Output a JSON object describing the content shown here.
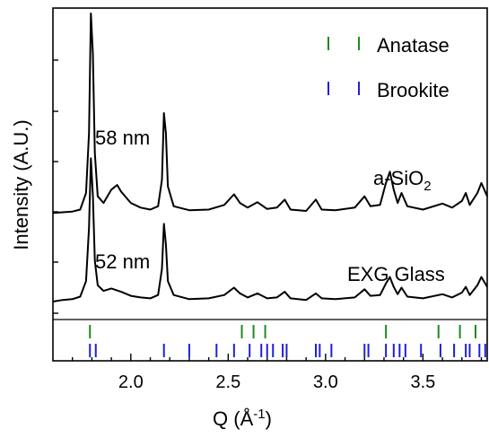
{
  "chart_data": {
    "type": "line",
    "xlabel": "Q (Å",
    "xlabel_sup": "-1",
    "xlabel_close": ")",
    "ylabel": "Intensity (A.U.)",
    "xlim": [
      1.6,
      3.83
    ],
    "x_ticks": [
      2.0,
      2.5,
      3.0,
      3.5
    ],
    "x_tick_labels": [
      "2.0",
      "2.5",
      "3.0",
      "3.5"
    ],
    "y_ticks_note": "unlabeled",
    "grid": false,
    "legend": {
      "placement": "top-right",
      "entries": [
        {
          "label": "Anatase",
          "color": "#1f8a1f"
        },
        {
          "label": "Brookite",
          "color": "#1f1fdd"
        }
      ]
    },
    "annotations": {
      "top_size": "58 nm",
      "bottom_size": "52 nm",
      "top_sample": "a-SiO",
      "top_sample_sub": "2",
      "bottom_sample": "EXG Glass"
    },
    "series": [
      {
        "color": "#000000",
        "baseline": 0.9,
        "scale": 0.75,
        "points": [
          [
            1.6,
            0.0
          ],
          [
            1.65,
            0.01
          ],
          [
            1.7,
            0.02
          ],
          [
            1.74,
            0.05
          ],
          [
            1.77,
            0.3
          ],
          [
            1.785,
            1.2
          ],
          [
            1.795,
            3.0
          ],
          [
            1.805,
            2.4
          ],
          [
            1.815,
            0.9
          ],
          [
            1.83,
            0.25
          ],
          [
            1.86,
            0.15
          ],
          [
            1.9,
            0.35
          ],
          [
            1.93,
            0.42
          ],
          [
            1.95,
            0.32
          ],
          [
            2.0,
            0.15
          ],
          [
            2.05,
            0.08
          ],
          [
            2.1,
            0.05
          ],
          [
            2.14,
            0.1
          ],
          [
            2.16,
            0.5
          ],
          [
            2.17,
            1.5
          ],
          [
            2.18,
            1.2
          ],
          [
            2.19,
            0.4
          ],
          [
            2.22,
            0.1
          ],
          [
            2.3,
            0.04
          ],
          [
            2.4,
            0.05
          ],
          [
            2.48,
            0.12
          ],
          [
            2.53,
            0.28
          ],
          [
            2.56,
            0.15
          ],
          [
            2.6,
            0.08
          ],
          [
            2.65,
            0.16
          ],
          [
            2.7,
            0.06
          ],
          [
            2.75,
            0.08
          ],
          [
            2.79,
            0.2
          ],
          [
            2.82,
            0.05
          ],
          [
            2.9,
            0.03
          ],
          [
            2.95,
            0.2
          ],
          [
            2.98,
            0.05
          ],
          [
            3.05,
            0.04
          ],
          [
            3.15,
            0.08
          ],
          [
            3.2,
            0.25
          ],
          [
            3.23,
            0.1
          ],
          [
            3.28,
            0.12
          ],
          [
            3.31,
            0.45
          ],
          [
            3.33,
            0.62
          ],
          [
            3.35,
            0.35
          ],
          [
            3.37,
            0.15
          ],
          [
            3.39,
            0.3
          ],
          [
            3.42,
            0.1
          ],
          [
            3.5,
            0.05
          ],
          [
            3.6,
            0.14
          ],
          [
            3.65,
            0.08
          ],
          [
            3.7,
            0.18
          ],
          [
            3.72,
            0.3
          ],
          [
            3.74,
            0.12
          ],
          [
            3.78,
            0.3
          ],
          [
            3.8,
            0.45
          ],
          [
            3.83,
            0.25
          ]
        ]
      },
      {
        "color": "#000000",
        "baseline": 0.0,
        "scale": 0.75,
        "points": [
          [
            1.6,
            0.0
          ],
          [
            1.65,
            0.02
          ],
          [
            1.7,
            0.03
          ],
          [
            1.74,
            0.06
          ],
          [
            1.77,
            0.25
          ],
          [
            1.785,
            0.9
          ],
          [
            1.795,
            1.75
          ],
          [
            1.805,
            1.3
          ],
          [
            1.815,
            0.5
          ],
          [
            1.83,
            0.2
          ],
          [
            1.86,
            0.13
          ],
          [
            1.9,
            0.16
          ],
          [
            1.95,
            0.12
          ],
          [
            2.0,
            0.07
          ],
          [
            2.05,
            0.05
          ],
          [
            2.1,
            0.04
          ],
          [
            2.14,
            0.08
          ],
          [
            2.16,
            0.4
          ],
          [
            2.17,
            0.95
          ],
          [
            2.18,
            0.7
          ],
          [
            2.19,
            0.25
          ],
          [
            2.22,
            0.08
          ],
          [
            2.3,
            0.03
          ],
          [
            2.4,
            0.04
          ],
          [
            2.48,
            0.08
          ],
          [
            2.53,
            0.17
          ],
          [
            2.56,
            0.1
          ],
          [
            2.6,
            0.05
          ],
          [
            2.65,
            0.1
          ],
          [
            2.7,
            0.04
          ],
          [
            2.75,
            0.05
          ],
          [
            2.79,
            0.12
          ],
          [
            2.82,
            0.04
          ],
          [
            2.9,
            0.02
          ],
          [
            2.95,
            0.1
          ],
          [
            2.98,
            0.04
          ],
          [
            3.05,
            0.03
          ],
          [
            3.15,
            0.05
          ],
          [
            3.2,
            0.15
          ],
          [
            3.23,
            0.07
          ],
          [
            3.28,
            0.08
          ],
          [
            3.31,
            0.22
          ],
          [
            3.33,
            0.3
          ],
          [
            3.35,
            0.18
          ],
          [
            3.37,
            0.09
          ],
          [
            3.39,
            0.17
          ],
          [
            3.42,
            0.06
          ],
          [
            3.5,
            0.04
          ],
          [
            3.6,
            0.09
          ],
          [
            3.65,
            0.05
          ],
          [
            3.7,
            0.11
          ],
          [
            3.72,
            0.18
          ],
          [
            3.74,
            0.08
          ],
          [
            3.78,
            0.2
          ],
          [
            3.8,
            0.3
          ],
          [
            3.83,
            0.18
          ]
        ]
      }
    ],
    "anatase_ticks": [
      1.79,
      2.57,
      2.63,
      2.69,
      3.31,
      3.58,
      3.69,
      3.77
    ],
    "brookite_ticks": [
      1.79,
      1.82,
      2.17,
      2.3,
      2.44,
      2.53,
      2.61,
      2.67,
      2.7,
      2.73,
      2.78,
      2.8,
      2.95,
      2.97,
      3.03,
      3.2,
      3.22,
      3.31,
      3.35,
      3.38,
      3.41,
      3.49,
      3.59,
      3.66,
      3.72,
      3.74,
      3.79,
      3.82
    ]
  }
}
